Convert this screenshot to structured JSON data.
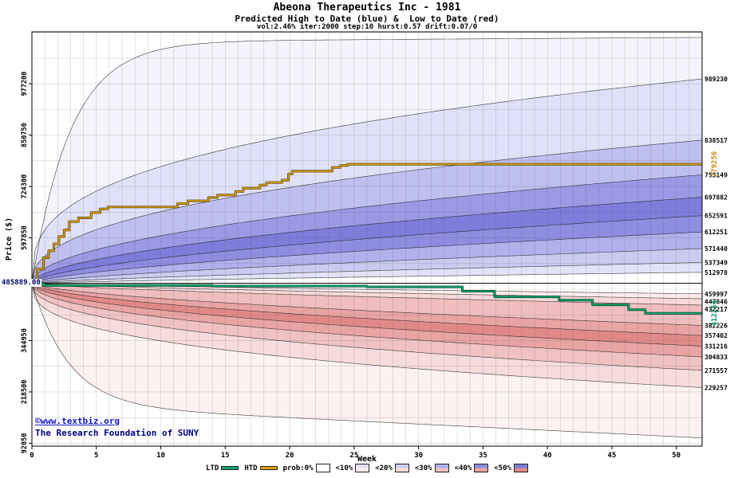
{
  "header": {
    "title": "Abeona Therapeutics Inc - 1981",
    "subtitle": "Predicted High to Date (blue) &  Low to Date (red)",
    "params": "vol:2.46% iter:2000 step:10 hurst:0.57 drift:0.07/0"
  },
  "watermark": {
    "line1": "©www.textbiz.org",
    "line2": "The Research Foundation of SUNY"
  },
  "legend": {
    "items": [
      {
        "label": "LTD",
        "swatch": "line",
        "color": "#0cab6c"
      },
      {
        "label": "HTD",
        "swatch": "line",
        "color": "#e0a010"
      },
      {
        "label": "prob:0%",
        "swatch": "box",
        "top": "#ffffff",
        "bottom": "#ffffff"
      },
      {
        "label": "<10%",
        "swatch": "box",
        "top": "#e3e3f8",
        "bottom": "#fcebeb"
      },
      {
        "label": "<20%",
        "swatch": "box",
        "top": "#cbcbf2",
        "bottom": "#f7d9d9"
      },
      {
        "label": "<30%",
        "swatch": "box",
        "top": "#b1b1ec",
        "bottom": "#f0bebe"
      },
      {
        "label": "<40%",
        "swatch": "box",
        "top": "#8d8de1",
        "bottom": "#e9a4a4"
      },
      {
        "label": "<50%",
        "swatch": "box",
        "top": "#7d7ddb",
        "bottom": "#e18989"
      }
    ]
  },
  "chart_data": {
    "type": "area",
    "subtype": "probability-fan",
    "title": "Abeona Therapeutics Inc - 1981",
    "xlabel": "Week",
    "ylabel": "Price ($)",
    "xlim": [
      0,
      52
    ],
    "ylim": [
      85000,
      1105000
    ],
    "weeks": 52,
    "x_ticks": [
      0,
      5,
      10,
      15,
      20,
      25,
      30,
      35,
      40,
      45,
      50
    ],
    "y_ticks_left": [
      92050,
      218500,
      344950,
      597850,
      724300,
      850750,
      977200
    ],
    "y_grid_step": 63225,
    "start_value": 485889,
    "start_label": "485889.00",
    "htd": {
      "name": "HTD (high to date)",
      "color": "#e0a010",
      "edge": "#53400a",
      "end_value": 779256,
      "end_label": "779256",
      "label_color": "#c8860a",
      "points": [
        [
          0,
          485889
        ],
        [
          0.4,
          521000
        ],
        [
          0.9,
          549000
        ],
        [
          1.3,
          566000
        ],
        [
          1.7,
          583000
        ],
        [
          2.1,
          601000
        ],
        [
          2.5,
          617000
        ],
        [
          2.9,
          638000
        ],
        [
          3.6,
          647000
        ],
        [
          4.6,
          660000
        ],
        [
          5.3,
          669000
        ],
        [
          5.9,
          674000
        ],
        [
          11.3,
          682000
        ],
        [
          12.1,
          689000
        ],
        [
          13.7,
          697000
        ],
        [
          14.4,
          703000
        ],
        [
          15.8,
          712000
        ],
        [
          16.4,
          720000
        ],
        [
          17.7,
          728000
        ],
        [
          18.2,
          734000
        ],
        [
          19.4,
          740000
        ],
        [
          19.9,
          755000
        ],
        [
          20.2,
          762000
        ],
        [
          23.3,
          771000
        ],
        [
          23.9,
          776000
        ],
        [
          24.5,
          779256
        ]
      ]
    },
    "ltd": {
      "name": "LTD (low to date)",
      "color": "#0cab6c",
      "edge": "#06402a",
      "end_value": 412254,
      "end_label": "412254",
      "label_color": "#009a5f",
      "points": [
        [
          0,
          485889
        ],
        [
          0.9,
          480800
        ],
        [
          14,
          479000
        ],
        [
          26,
          477200
        ],
        [
          33.4,
          466500
        ],
        [
          35.9,
          452500
        ],
        [
          40.9,
          444500
        ],
        [
          43.5,
          433000
        ],
        [
          46.3,
          421000
        ],
        [
          47.6,
          412254
        ]
      ]
    },
    "high_bands": {
      "boundaries": [
        {
          "end": 512978,
          "p": 0.8,
          "label": "512978"
        },
        {
          "end": 537349,
          "p": 0.75,
          "label": "537349"
        },
        {
          "end": 571440,
          "p": 0.7,
          "label": "571440"
        },
        {
          "end": 612251,
          "p": 0.65,
          "label": "612251"
        },
        {
          "end": 652591,
          "p": 0.6,
          "label": "652591"
        },
        {
          "end": 697882,
          "p": 0.55,
          "label": "697882"
        },
        {
          "end": 753149,
          "p": 0.5,
          "label": "753149"
        },
        {
          "end": 838517,
          "p": 0.42,
          "label": "838517"
        },
        {
          "end": 989230,
          "p": 0.34,
          "label": "989230"
        },
        {
          "model": "sat",
          "delta": 595000,
          "tau": 3,
          "lin": 200
        }
      ],
      "fills": [
        "#ffffff",
        "#e3e3f8",
        "#cbcbf2",
        "#b1b1ec",
        "#8d8de1",
        "#7d7ddb",
        "#9a9ae5",
        "#c0c0f0",
        "#e0e0f8",
        "#f4f4fc"
      ]
    },
    "low_bands": {
      "boundaries": [
        {
          "end": 459997,
          "p": 0.8,
          "label": "459997"
        },
        {
          "end": 447846,
          "p": 0.75,
          "label": "447846"
        },
        {
          "end": 432217,
          "p": 0.7,
          "label": "432217"
        },
        {
          "end": 382226,
          "p": 0.62,
          "label": "382226"
        },
        {
          "end": 357402,
          "p": 0.57,
          "label": "357402"
        },
        {
          "end": 331216,
          "p": 0.52,
          "label": "331216"
        },
        {
          "end": 304833,
          "p": 0.47,
          "label": "304833"
        },
        {
          "end": 271557,
          "p": 0.42,
          "label": "271557"
        },
        {
          "end": 229257,
          "p": 0.36,
          "label": "229257"
        },
        {
          "model": "sat",
          "delta": -300000,
          "tau": 2.8,
          "lin": -1550
        }
      ],
      "fills": [
        "#ffffff",
        "#fcebeb",
        "#f7d9d9",
        "#f0bebe",
        "#e9a4a4",
        "#e18989",
        "#e9a4a4",
        "#f0c2c2",
        "#f7dcdc",
        "#fdf1f1"
      ]
    }
  }
}
